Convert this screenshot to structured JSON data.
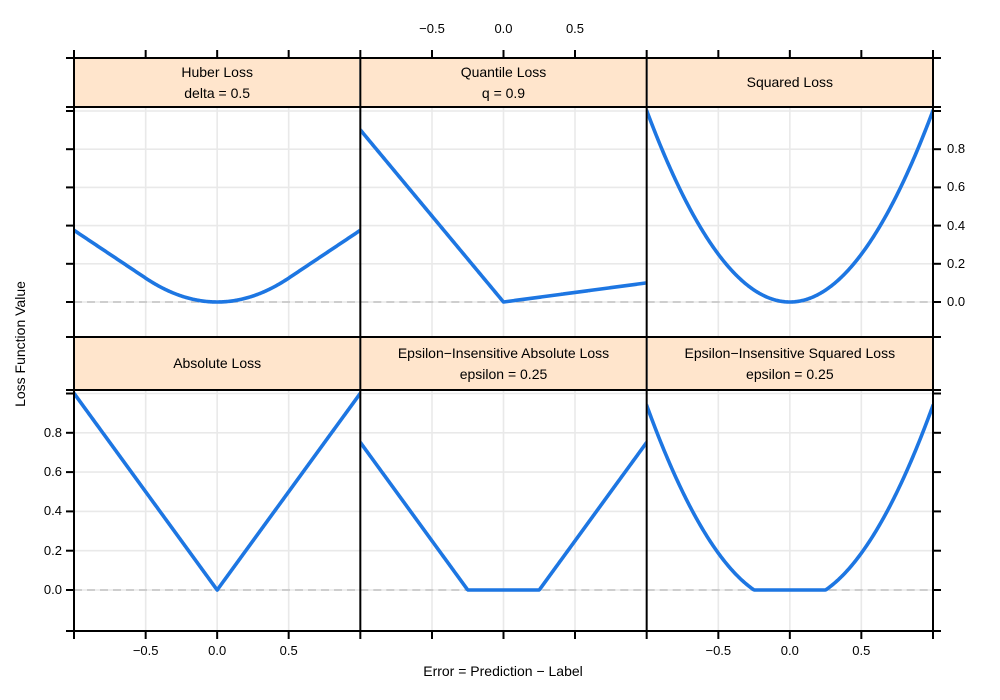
{
  "figure": {
    "background": "#ffffff"
  },
  "labels": {
    "xlabel": "Error = Prediction − Label",
    "ylabel": "Loss Function Value"
  },
  "ticks": {
    "x_labels": [
      "−0.5",
      "0.0",
      "0.5"
    ],
    "x_values": [
      -0.5,
      0.0,
      0.5
    ],
    "y_labels": [
      "0.0",
      "0.2",
      "0.4",
      "0.6",
      "0.8"
    ],
    "y_values": [
      0.0,
      0.2,
      0.4,
      0.6,
      0.8
    ],
    "y_tick_values_all": [
      0.0,
      0.2,
      0.4,
      0.6,
      0.8,
      1.0
    ]
  },
  "style": {
    "strip_fill": "#ffe5cc",
    "line_color": "#1d76e2",
    "grid_color": "#e9e9e9",
    "zero_line_color": "#c8c8c8",
    "frame_color": "#000000",
    "text_color": "#000000"
  },
  "chart_data": [
    {
      "type": "line",
      "title": "Huber Loss",
      "subtitle": "delta = 0.5",
      "fn": "huber",
      "params": {
        "delta": 0.5
      },
      "x_range": [
        -1,
        1
      ],
      "ylim_shared": [
        0,
        1
      ],
      "zero_reference_line": 0,
      "x": [
        -1,
        -0.75,
        -0.5,
        -0.25,
        0,
        0.25,
        0.5,
        0.75,
        1
      ],
      "y": [
        0.375,
        0.25,
        0.125,
        0.03125,
        0,
        0.03125,
        0.125,
        0.25,
        0.375
      ]
    },
    {
      "type": "line",
      "title": "Quantile Loss",
      "subtitle": "q = 0.9",
      "fn": "quantile",
      "params": {
        "q": 0.9
      },
      "x_range": [
        -1,
        1
      ],
      "ylim_shared": [
        0,
        1
      ],
      "zero_reference_line": 0,
      "x": [
        -1,
        -0.75,
        -0.5,
        -0.25,
        0,
        0.25,
        0.5,
        0.75,
        1
      ],
      "y": [
        0.9,
        0.675,
        0.45,
        0.225,
        0,
        0.025,
        0.05,
        0.075,
        0.1
      ]
    },
    {
      "type": "line",
      "title": "Squared Loss",
      "fn": "squared",
      "params": {},
      "x_range": [
        -1,
        1
      ],
      "ylim_shared": [
        0,
        1
      ],
      "zero_reference_line": 0,
      "x": [
        -1,
        -0.75,
        -0.5,
        -0.25,
        0,
        0.25,
        0.5,
        0.75,
        1
      ],
      "y": [
        1,
        0.5625,
        0.25,
        0.0625,
        0,
        0.0625,
        0.25,
        0.5625,
        1
      ]
    },
    {
      "type": "line",
      "title": "Absolute Loss",
      "fn": "absolute",
      "params": {},
      "x_range": [
        -1,
        1
      ],
      "ylim_shared": [
        0,
        1
      ],
      "zero_reference_line": 0,
      "x": [
        -1,
        -0.75,
        -0.5,
        -0.25,
        0,
        0.25,
        0.5,
        0.75,
        1
      ],
      "y": [
        1,
        0.75,
        0.5,
        0.25,
        0,
        0.25,
        0.5,
        0.75,
        1
      ]
    },
    {
      "type": "line",
      "title": "Epsilon−Insensitive Absolute Loss",
      "subtitle": "epsilon = 0.25",
      "fn": "eps_absolute",
      "params": {
        "epsilon": 0.25
      },
      "x_range": [
        -1,
        1
      ],
      "ylim_shared": [
        0,
        1
      ],
      "zero_reference_line": 0,
      "x": [
        -1,
        -0.75,
        -0.5,
        -0.25,
        0,
        0.25,
        0.5,
        0.75,
        1
      ],
      "y": [
        0.75,
        0.5,
        0.25,
        0,
        0,
        0,
        0.25,
        0.5,
        0.75
      ]
    },
    {
      "type": "line",
      "title": "Epsilon−Insensitive Squared Loss",
      "subtitle": "epsilon = 0.25",
      "fn": "eps_squared",
      "params": {
        "epsilon": 0.25
      },
      "x_range": [
        -1,
        1
      ],
      "ylim_shared": [
        0,
        1
      ],
      "zero_reference_line": 0,
      "x": [
        -1,
        -0.75,
        -0.5,
        -0.25,
        0,
        0.25,
        0.5,
        0.75,
        1
      ],
      "y": [
        0.9375,
        0.5,
        0.1875,
        0,
        0,
        0,
        0.1875,
        0.5,
        0.9375
      ]
    }
  ]
}
